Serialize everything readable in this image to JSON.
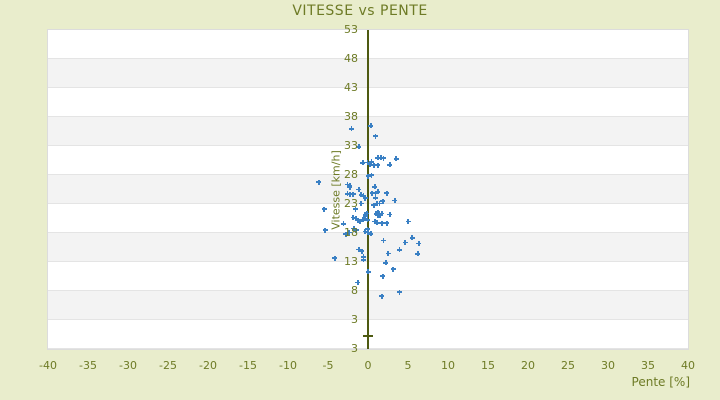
{
  "title": "VITESSE vs PENTE",
  "colors": {
    "background": "#e9edcc",
    "text_olive": "#6e7b26",
    "axis_line": "#4e5a12",
    "marker_blue": "#3a80c4",
    "band_light": "#ffffff",
    "band_dark": "#f3f3f3",
    "band_border": "#e4e4e4"
  },
  "chart_data": {
    "type": "scatter",
    "title": "VITESSE vs PENTE",
    "xlabel": "Pente [%]",
    "ylabel": "Vitesse [km/h]",
    "xlim": [
      -40,
      40
    ],
    "ylim": [
      -2,
      53
    ],
    "x_ticks": [
      -40,
      -35,
      -30,
      -25,
      -20,
      -15,
      -10,
      -5,
      0,
      5,
      10,
      15,
      20,
      25,
      30,
      35,
      40
    ],
    "y_tick_labels": [
      "53",
      "48",
      "43",
      "38",
      "33",
      "28",
      "23",
      "18",
      "13",
      "8",
      "3",
      "3"
    ],
    "grid": "horizontal alternating bands every 5 units",
    "legend": "none",
    "marker": "plus",
    "zero_axis_line_x": 0,
    "origin_tick_y": 0,
    "points": [
      [
        -2.0,
        35.9
      ],
      [
        0.4,
        36.4
      ],
      [
        1.0,
        34.6
      ],
      [
        -1.1,
        32.8
      ],
      [
        1.3,
        30.9
      ],
      [
        1.7,
        30.9
      ],
      [
        2.0,
        30.8
      ],
      [
        3.6,
        30.7
      ],
      [
        0.5,
        30.2
      ],
      [
        -0.6,
        30.0
      ],
      [
        0.0,
        30.1
      ],
      [
        0.3,
        29.8
      ],
      [
        0.8,
        29.6
      ],
      [
        1.3,
        29.6
      ],
      [
        2.8,
        29.7
      ],
      [
        0.1,
        27.7
      ],
      [
        0.5,
        27.9
      ],
      [
        -6.1,
        26.7
      ],
      [
        -2.5,
        26.3
      ],
      [
        -2.2,
        26.1
      ],
      [
        0.9,
        25.9
      ],
      [
        -2.2,
        25.8
      ],
      [
        -1.1,
        25.4
      ],
      [
        -2.5,
        24.7
      ],
      [
        -2.2,
        24.6
      ],
      [
        -1.8,
        24.6
      ],
      [
        -0.8,
        24.5
      ],
      [
        -0.5,
        24.3
      ],
      [
        0.6,
        24.8
      ],
      [
        1.0,
        24.8
      ],
      [
        1.3,
        25.0
      ],
      [
        2.4,
        24.8
      ],
      [
        1.0,
        24.0
      ],
      [
        -0.3,
        23.9
      ],
      [
        -0.8,
        23.0
      ],
      [
        1.2,
        23.0
      ],
      [
        1.5,
        23.0
      ],
      [
        1.9,
        23.4
      ],
      [
        3.4,
        23.5
      ],
      [
        0.8,
        22.7
      ],
      [
        -1.5,
        22.0
      ],
      [
        -5.4,
        22.0
      ],
      [
        1.3,
        21.5
      ],
      [
        1.5,
        21.3
      ],
      [
        1.8,
        21.3
      ],
      [
        1.3,
        21.0
      ],
      [
        1.6,
        21.0
      ],
      [
        1.1,
        21.2
      ],
      [
        2.8,
        21.1
      ],
      [
        -0.1,
        21.3
      ],
      [
        -0.3,
        21.1
      ],
      [
        -0.4,
        20.4
      ],
      [
        0.0,
        20.2
      ],
      [
        -1.8,
        20.6
      ],
      [
        -1.4,
        20.4
      ],
      [
        -1.2,
        20.1
      ],
      [
        -0.9,
        19.9
      ],
      [
        -0.6,
        20.2
      ],
      [
        -0.3,
        20.8
      ],
      [
        0.9,
        19.9
      ],
      [
        1.2,
        19.7
      ],
      [
        1.8,
        19.6
      ],
      [
        2.4,
        19.6
      ],
      [
        5.1,
        19.9
      ],
      [
        -3.0,
        19.5
      ],
      [
        -5.3,
        18.4
      ],
      [
        -2.3,
        18.0
      ],
      [
        -2.7,
        17.7
      ],
      [
        -1.7,
        18.7
      ],
      [
        -1.4,
        18.4
      ],
      [
        0.0,
        18.6
      ],
      [
        -0.3,
        18.2
      ],
      [
        0.4,
        17.8
      ],
      [
        0.1,
        18.0
      ],
      [
        2.0,
        16.6
      ],
      [
        4.7,
        16.3
      ],
      [
        5.6,
        17.1
      ],
      [
        6.4,
        16.1
      ],
      [
        -1.1,
        15.1
      ],
      [
        -0.7,
        14.8
      ],
      [
        4.0,
        15.0
      ],
      [
        2.6,
        14.4
      ],
      [
        6.3,
        14.3
      ],
      [
        -4.1,
        13.6
      ],
      [
        -0.5,
        13.8
      ],
      [
        -0.5,
        13.3
      ],
      [
        2.3,
        12.8
      ],
      [
        3.2,
        11.7
      ],
      [
        0.1,
        11.2
      ],
      [
        1.9,
        10.5
      ],
      [
        -1.2,
        9.4
      ],
      [
        4.0,
        7.7
      ],
      [
        1.8,
        7.0
      ]
    ]
  }
}
